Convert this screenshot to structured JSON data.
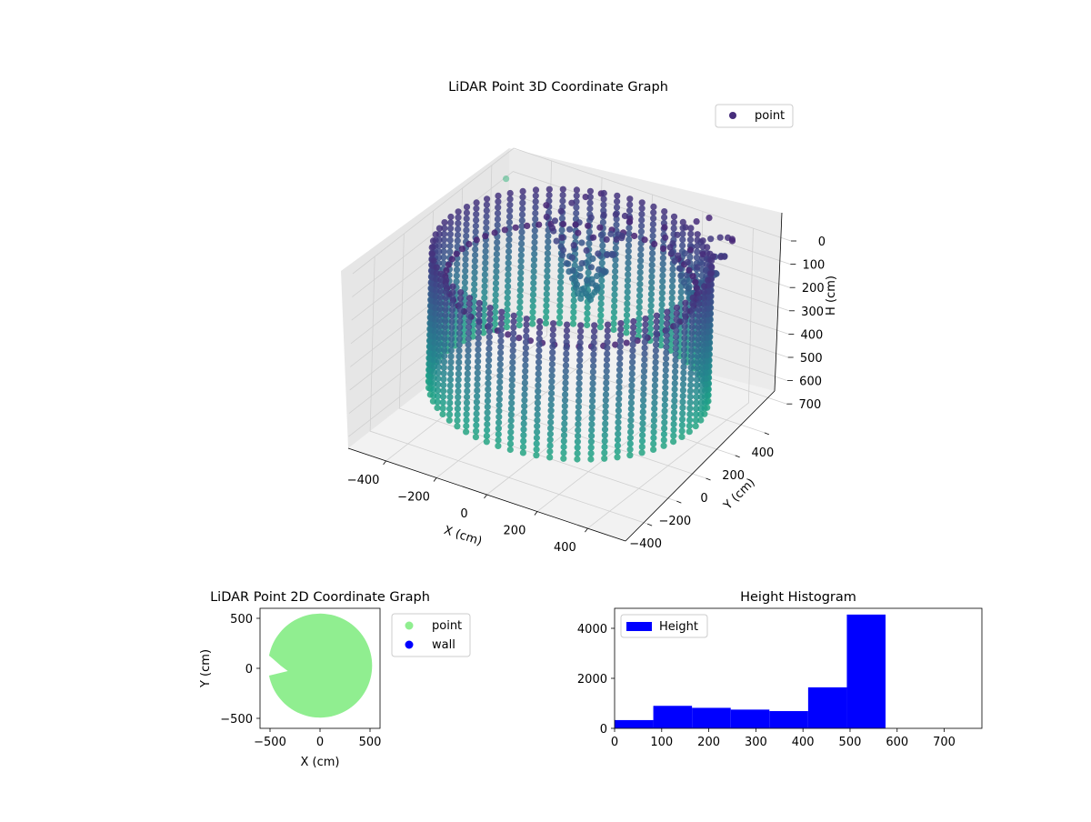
{
  "chart_data": [
    {
      "type": "scatter",
      "projection": "3d",
      "title": "LiDAR Point 3D Coordinate Graph",
      "xlabel": "X (cm)",
      "ylabel": "Y (cm)",
      "zlabel": "H (cm)",
      "xlim": [
        -550,
        550
      ],
      "ylim": [
        -550,
        550
      ],
      "zlim": [
        0,
        750
      ],
      "z_inverted": true,
      "x_ticks": [
        "−400",
        "−200",
        "0",
        "200",
        "400"
      ],
      "y_ticks": [
        "−400",
        "−200",
        "0",
        "200",
        "400"
      ],
      "z_ticks": [
        "0",
        "100",
        "200",
        "300",
        "400",
        "500",
        "600",
        "700"
      ],
      "colormap": "viridis",
      "legend": {
        "placement": "upper-right",
        "entries": [
          {
            "label": "point",
            "color": "#472d7b"
          }
        ]
      },
      "grid": true,
      "series": [
        {
          "name": "point",
          "shape": "cylindrical-wall",
          "wall_radius": 480,
          "h_range": [
            0,
            590
          ],
          "features": [
            {
              "kind": "tree",
              "x": -120,
              "y": 320,
              "h_range": [
                10,
                380
              ]
            },
            {
              "kind": "tree",
              "x": 260,
              "y": 420,
              "h_range": [
                10,
                300
              ]
            },
            {
              "kind": "outliers",
              "points": [
                {
                  "x": -560,
                  "y": 520,
                  "h": 120
                },
                {
                  "x": -610,
                  "y": 120,
                  "h": 480
                },
                {
                  "x": -540,
                  "y": 80,
                  "h": 500
                }
              ]
            }
          ]
        }
      ]
    },
    {
      "type": "scatter",
      "title": "LiDAR Point 2D Coordinate Graph",
      "xlabel": "X (cm)",
      "ylabel": "Y (cm)",
      "xlim": [
        -600,
        600
      ],
      "ylim": [
        -600,
        600
      ],
      "x_ticks": [
        "−500",
        "0",
        "500"
      ],
      "y_ticks": [
        "−500",
        "0",
        "500"
      ],
      "grid": false,
      "legend": {
        "placement": "outside-right",
        "entries": [
          {
            "label": "point",
            "color": "#90ee90"
          },
          {
            "label": "wall",
            "color": "#0000ff"
          }
        ]
      },
      "series": [
        {
          "name": "point",
          "color": "#90ee90",
          "shape": "disc",
          "radius": 520,
          "notch": {
            "direction": "left",
            "y": 0,
            "depth": 360
          }
        },
        {
          "name": "wall",
          "color": "#0000ff",
          "points": []
        }
      ]
    },
    {
      "type": "bar",
      "title": "Height Histogram",
      "xlabel": "",
      "ylabel": "",
      "xlim": [
        0,
        780
      ],
      "ylim": [
        0,
        4800
      ],
      "x_ticks": [
        "0",
        "100",
        "200",
        "300",
        "400",
        "500",
        "600",
        "700"
      ],
      "y_ticks": [
        "0",
        "2000",
        "4000"
      ],
      "grid": false,
      "legend": {
        "placement": "upper-left",
        "entries": [
          {
            "label": "Height",
            "color": "#0000ff"
          }
        ]
      },
      "series": [
        {
          "name": "Height",
          "color": "#0000ff",
          "bin_edges": [
            0,
            82.2,
            164.4,
            246.6,
            328.8,
            411,
            493.2,
            575.4,
            657.6,
            739.8,
            822
          ],
          "counts": [
            330,
            900,
            820,
            750,
            690,
            1640,
            4550,
            0,
            0,
            0
          ]
        }
      ]
    }
  ]
}
